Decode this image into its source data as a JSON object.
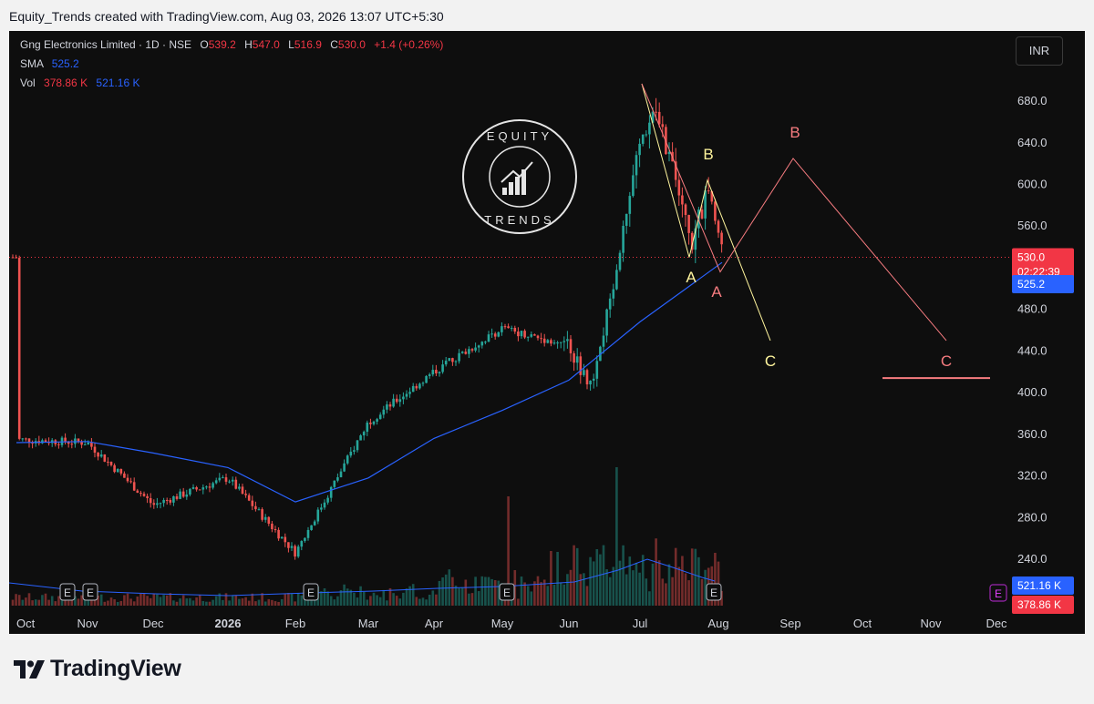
{
  "header": {
    "caption": "Equity_Trends created with TradingView.com, Aug 03, 2026 13:07 UTC+5:30"
  },
  "legend": {
    "title": "Gng Electronics Limited · 1D · NSE",
    "open_label": "O",
    "open": "539.2",
    "high_label": "H",
    "high": "547.0",
    "low_label": "L",
    "low": "516.9",
    "close_label": "C",
    "close": "530.0",
    "change": "+1.4 (+0.26%)",
    "sma_label": "SMA",
    "sma_value": "525.2",
    "vol_label": "Vol",
    "vol_value_1": "378.86 K",
    "vol_value_2": "521.16 K"
  },
  "currency_button": "INR",
  "watermark": {
    "top_text": "EQUITY",
    "bottom_text": "TRENDS"
  },
  "footer": {
    "brand": "TradingView"
  },
  "chart_data": {
    "type": "candlestick",
    "y_axis": {
      "ticks": [
        240,
        280,
        320,
        360,
        400,
        440,
        480,
        520,
        560,
        600,
        640,
        680
      ],
      "tick_labels": [
        "240.0",
        "280.0",
        "320.0",
        "360.0",
        "400.0",
        "440.0",
        "480.0",
        "520.0",
        "560.0",
        "600.0",
        "640.0",
        "680.0"
      ],
      "side": "right"
    },
    "x_axis": {
      "labels": [
        "Oct",
        "Nov",
        "Dec",
        "2026",
        "Feb",
        "Mar",
        "Apr",
        "May",
        "Jun",
        "Jul",
        "Aug",
        "Sep",
        "Oct",
        "Nov",
        "Dec"
      ]
    },
    "last_price": {
      "value": 530.0,
      "label": "530.0",
      "countdown": "02:22:39",
      "color": "#f23645"
    },
    "sma_marker": {
      "value": 525.2,
      "label": "525.2",
      "color": "#2962ff"
    },
    "volume_markers": [
      {
        "label": "521.16 K",
        "color": "#2962ff"
      },
      {
        "label": "378.86 K",
        "color": "#f23645"
      }
    ],
    "earnings_markers": [
      "E",
      "E",
      "E",
      "E",
      "E"
    ],
    "colors": {
      "up": "#26a69a",
      "down": "#ef5350",
      "sma": "#2962ff",
      "grid": "none",
      "yellow": "#fff59d",
      "salmon": "#f77c80"
    },
    "price_anchors": [
      [
        "Oct",
        355
      ],
      [
        "Nov",
        352
      ],
      [
        "Dec",
        292
      ],
      [
        "2026",
        318
      ],
      [
        "Feb",
        246
      ],
      [
        "Mar",
        372
      ],
      [
        "Apr",
        420
      ],
      [
        "May",
        462
      ],
      [
        "Jun",
        445
      ],
      [
        "Jun",
        402
      ],
      [
        "Jul",
        640
      ],
      [
        "Jul",
        682
      ],
      [
        "Jul",
        540
      ],
      [
        "Jul",
        600
      ],
      [
        "Aug",
        530
      ]
    ],
    "sma_anchors": [
      [
        "Oct",
        352
      ],
      [
        "Nov",
        353
      ],
      [
        "Dec",
        342
      ],
      [
        "2026",
        328
      ],
      [
        "Feb",
        295
      ],
      [
        "Mar",
        318
      ],
      [
        "Apr",
        356
      ],
      [
        "May",
        383
      ],
      [
        "Jun",
        412
      ],
      [
        "Jul",
        468
      ],
      [
        "Aug",
        525
      ]
    ],
    "annotations": [
      {
        "label": "B",
        "color": "#fff59d"
      },
      {
        "label": "A",
        "color": "#fff59d"
      },
      {
        "label": "C",
        "color": "#fff59d"
      },
      {
        "label": "B",
        "color": "#f77c80"
      },
      {
        "label": "A",
        "color": "#f77c80"
      },
      {
        "label": "C",
        "color": "#f77c80"
      }
    ]
  }
}
